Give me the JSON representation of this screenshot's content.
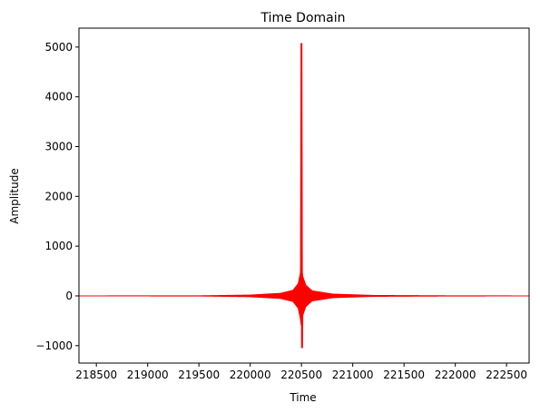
{
  "chart_data": {
    "type": "line",
    "title": "Time Domain",
    "xlabel": "Time",
    "ylabel": "Amplitude",
    "xlim": [
      218330,
      222720
    ],
    "ylim": [
      -1350,
      5380
    ],
    "x_ticks": [
      218500,
      219000,
      219500,
      220000,
      220500,
      221000,
      221500,
      222000,
      222500
    ],
    "y_ticks": [
      -1000,
      0,
      1000,
      2000,
      3000,
      4000,
      5000
    ],
    "x_tick_labels": [
      "218500",
      "219000",
      "219500",
      "220000",
      "220500",
      "221000",
      "221500",
      "222000",
      "222500"
    ],
    "y_tick_labels": [
      "−1000",
      "0",
      "1000",
      "2000",
      "3000",
      "4000",
      "5000"
    ],
    "grid": false,
    "series": [
      {
        "color": "#ff0000",
        "peak_x": 220500,
        "peak_max": 5080,
        "peak_min": -1050,
        "envelope": [
          {
            "x": 218330,
            "amp": 8
          },
          {
            "x": 219500,
            "amp": 10
          },
          {
            "x": 220000,
            "amp": 25
          },
          {
            "x": 220300,
            "amp": 60
          },
          {
            "x": 220420,
            "amp": 120
          },
          {
            "x": 220470,
            "amp": 250
          },
          {
            "x": 220490,
            "amp": 450
          },
          {
            "x": 220500,
            "amp": 600
          },
          {
            "x": 220510,
            "amp": 400
          },
          {
            "x": 220540,
            "amp": 220
          },
          {
            "x": 220600,
            "amp": 110
          },
          {
            "x": 220800,
            "amp": 45
          },
          {
            "x": 221200,
            "amp": 18
          },
          {
            "x": 222000,
            "amp": 10
          },
          {
            "x": 222720,
            "amp": 8
          }
        ]
      }
    ]
  }
}
